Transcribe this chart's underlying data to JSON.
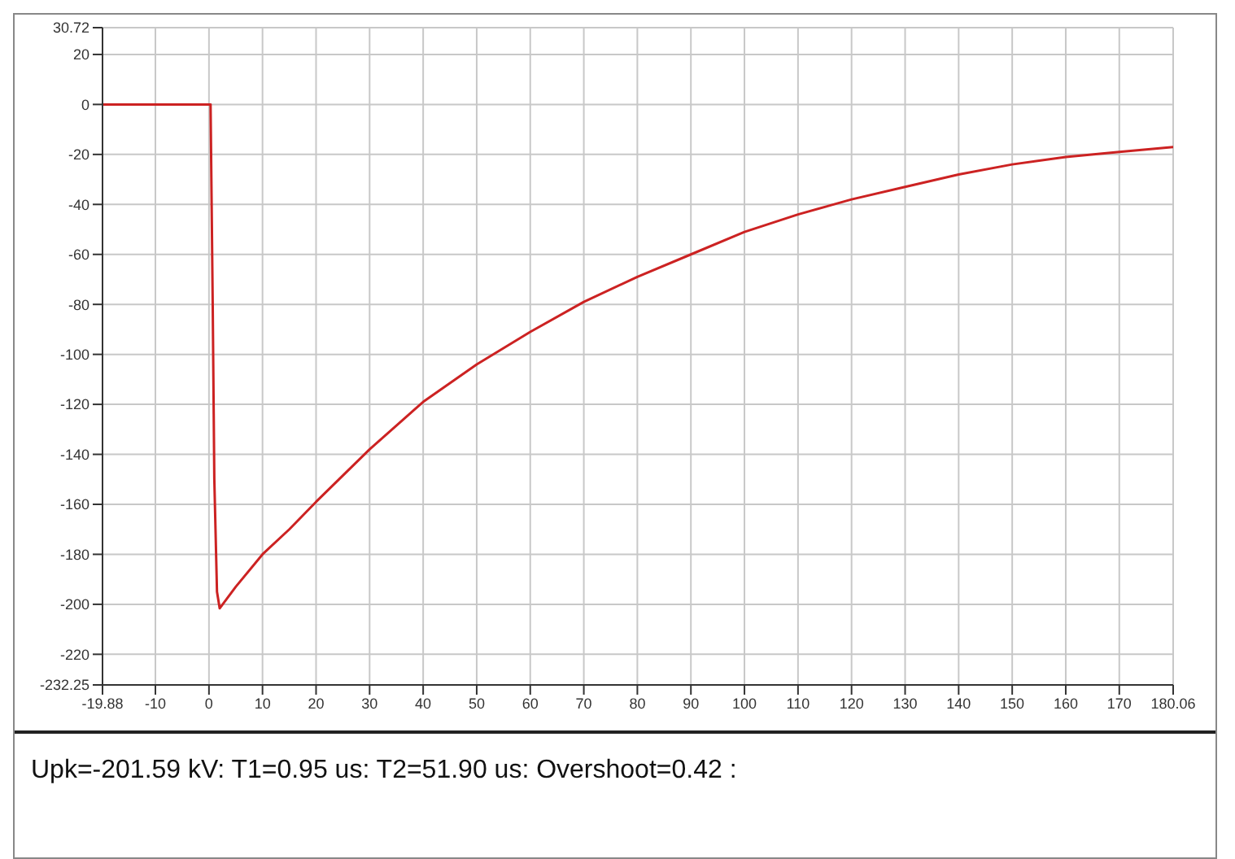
{
  "chart_data": {
    "type": "line",
    "x": [
      -19.88,
      -10,
      0,
      0.3,
      0.7,
      1,
      1.5,
      2,
      5,
      10,
      15,
      20,
      30,
      40,
      50,
      60,
      70,
      80,
      90,
      100,
      110,
      120,
      130,
      140,
      150,
      160,
      170,
      180.06
    ],
    "series": [
      {
        "color": "#cc2222",
        "values": [
          0,
          0,
          0,
          0,
          -80,
          -150,
          -195,
          -201.6,
          -193,
          -180,
          -170,
          -159,
          -138,
          -119,
          -104,
          -91,
          -79,
          -69,
          -60,
          -51,
          -44,
          -38,
          -33,
          -28,
          -24,
          -21,
          -19,
          -17
        ]
      }
    ],
    "xlim": [
      -19.88,
      180.06
    ],
    "xticks": [
      -19.88,
      -10,
      0,
      10,
      20,
      30,
      40,
      50,
      60,
      70,
      80,
      90,
      100,
      110,
      120,
      130,
      140,
      150,
      160,
      170,
      180.06
    ],
    "ylim": [
      -232.25,
      30.72
    ],
    "yticks": [
      -232.25,
      -220,
      -200,
      -180,
      -160,
      -140,
      -120,
      -100,
      -80,
      -60,
      -40,
      -20,
      0,
      20,
      30.72
    ],
    "grid": true,
    "legend": false,
    "marker": "none",
    "line_style": "solid",
    "annotations": [
      "Upk=-201.59 kV: T1=0.95 us: T2=51.90 us: Overshoot=0.42  :"
    ]
  }
}
